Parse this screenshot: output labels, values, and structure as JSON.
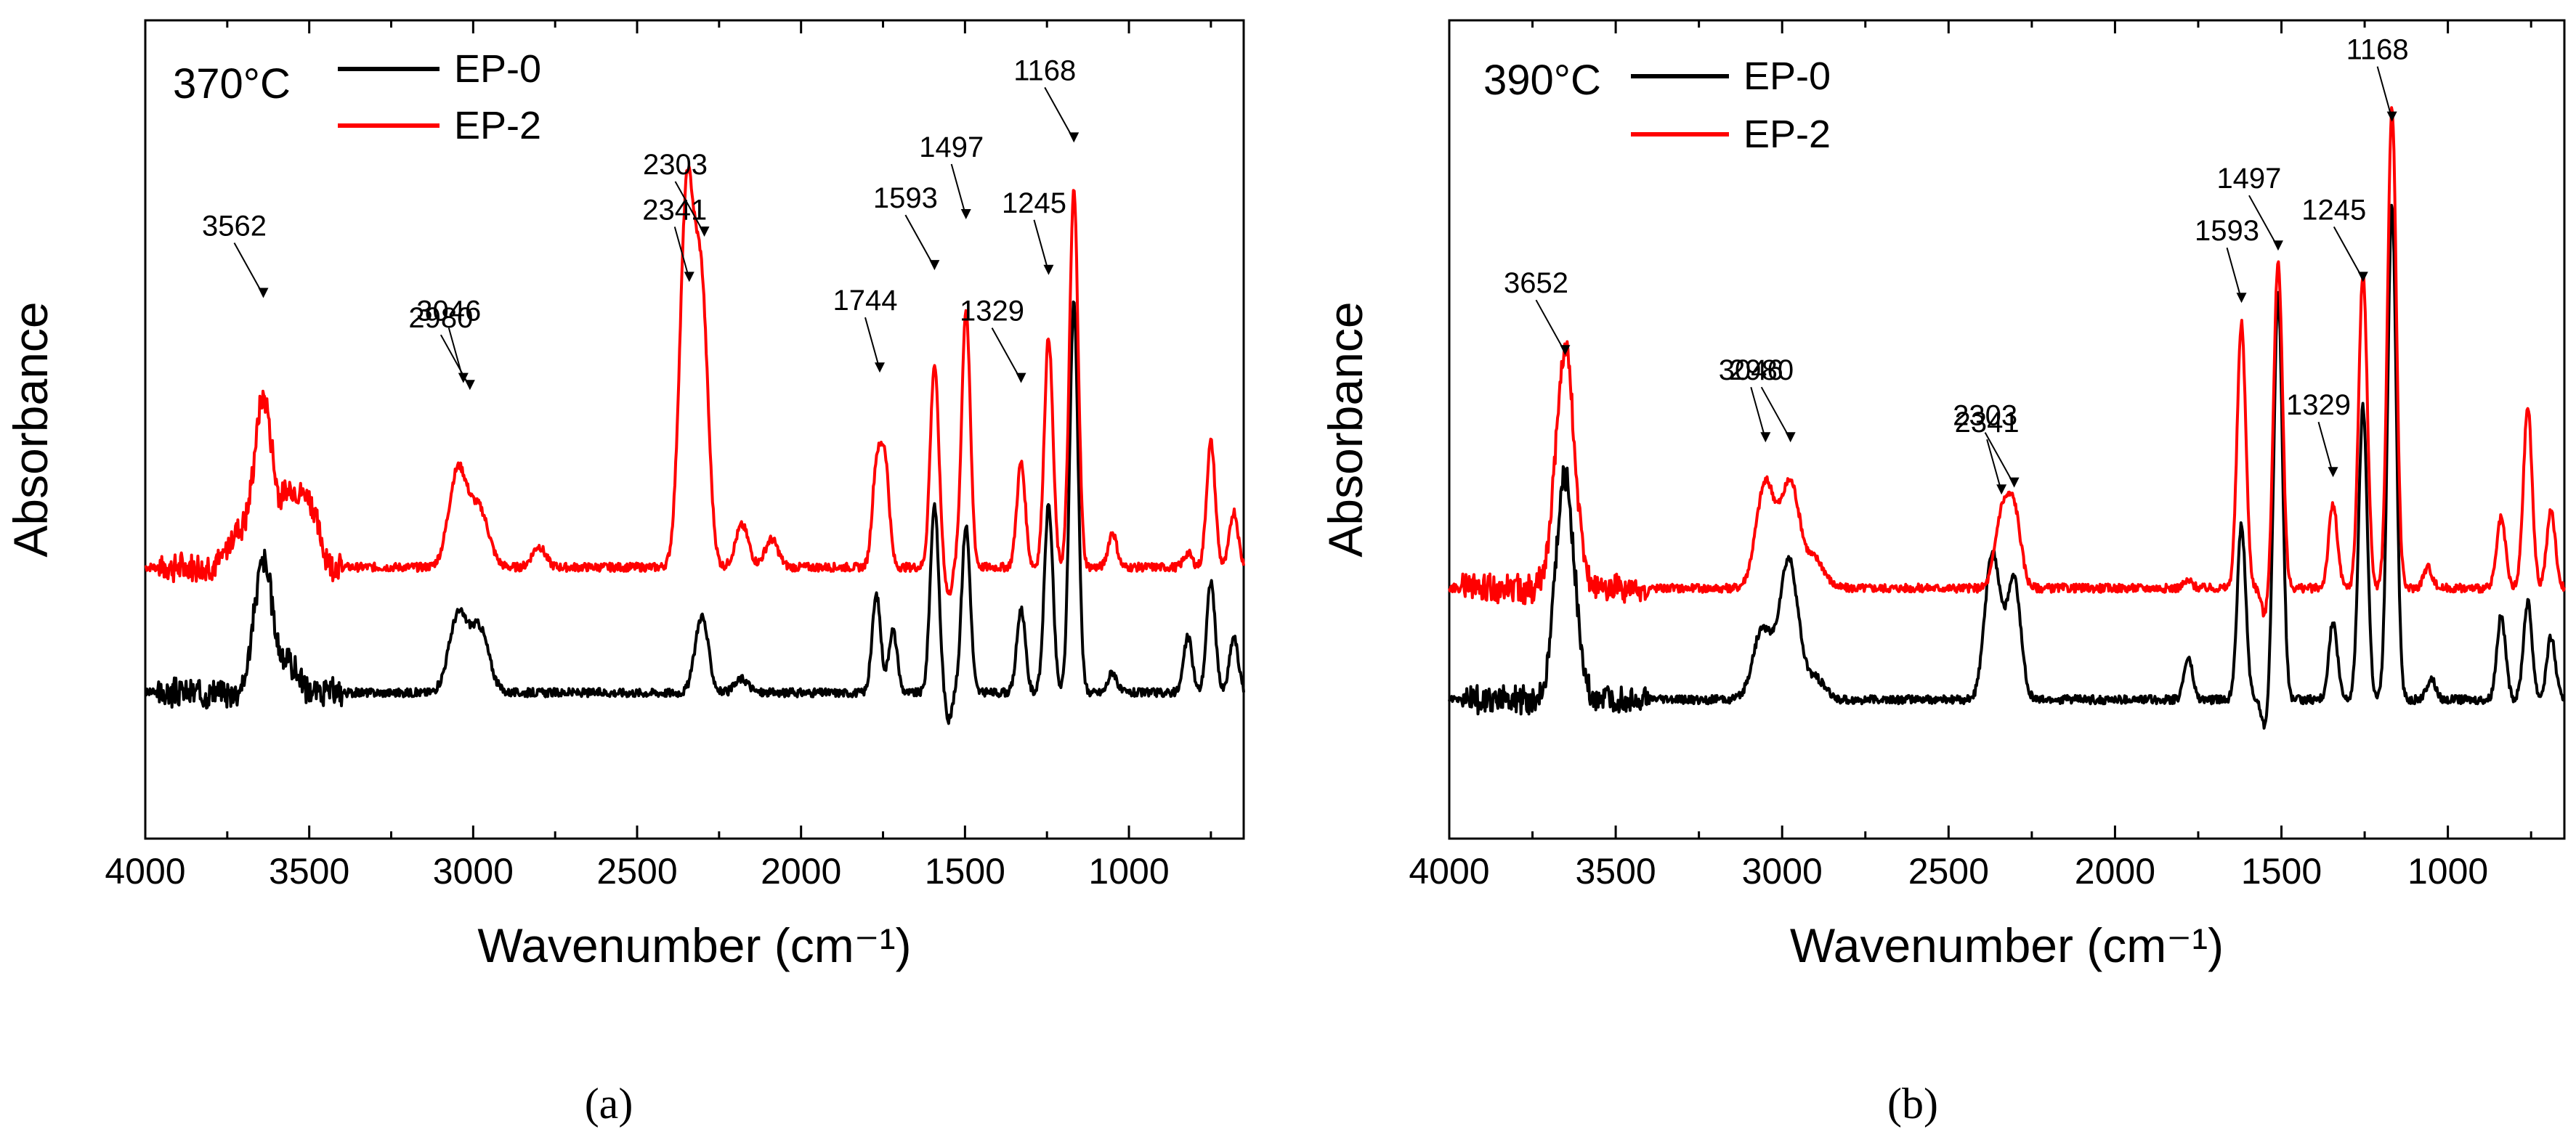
{
  "figure": {
    "caption_a": "(a)",
    "caption_b": "(b)"
  },
  "chart_data": [
    {
      "type": "line",
      "panel_label": "370°C",
      "xlabel": "Wavenumber (cm⁻¹)",
      "ylabel": "Absorbance",
      "xlim": [
        4000,
        650
      ],
      "xticks": [
        4000,
        3500,
        3000,
        2500,
        2000,
        1500,
        1000
      ],
      "xtick_labels": [
        "4000",
        "3500",
        "3000",
        "2500",
        "2000",
        "1500",
        "1000"
      ],
      "ylim": [
        0,
        1
      ],
      "legend": [
        "EP-0",
        "EP-2"
      ],
      "colors": {
        "EP-0": "#000000",
        "EP-2": "#ff0000"
      },
      "annotations": [
        {
          "text": "3562",
          "x": 3640,
          "y": 0.662
        },
        {
          "text": "3046",
          "x": 3030,
          "y": 0.54
        },
        {
          "text": "2980",
          "x": 3010,
          "y": 0.53
        },
        {
          "text": "2341",
          "x": 2341,
          "y": 0.685
        },
        {
          "text": "2303",
          "x": 2295,
          "y": 0.75
        },
        {
          "text": "1744",
          "x": 1760,
          "y": 0.555
        },
        {
          "text": "1593",
          "x": 1593,
          "y": 0.702
        },
        {
          "text": "1497",
          "x": 1497,
          "y": 0.775
        },
        {
          "text": "1329",
          "x": 1329,
          "y": 0.54
        },
        {
          "text": "1245",
          "x": 1245,
          "y": 0.695
        },
        {
          "text": "1168",
          "x": 1168,
          "y": 0.885
        }
      ],
      "series": [
        {
          "name": "EP-2",
          "peaks": [
            [
              3718,
              0.05
            ],
            [
              3640,
              0.24
            ],
            [
              3560,
              0.1
            ],
            [
              3500,
              0.09
            ],
            [
              3046,
              0.14
            ],
            [
              2980,
              0.08
            ],
            [
              2800,
              0.03
            ],
            [
              2355,
              0.29
            ],
            [
              2341,
              0.28
            ],
            [
              2303,
              0.38
            ],
            [
              2180,
              0.06
            ],
            [
              2090,
              0.04
            ],
            [
              1770,
              0.14
            ],
            [
              1744,
              0.15
            ],
            [
              1593,
              0.29
            ],
            [
              1497,
              0.37
            ],
            [
              1329,
              0.15
            ],
            [
              1245,
              0.33
            ],
            [
              1168,
              0.54
            ],
            [
              1050,
              0.05
            ],
            [
              820,
              0.02
            ],
            [
              750,
              0.18
            ],
            [
              680,
              0.08
            ]
          ]
        },
        {
          "name": "EP-0",
          "peaks": [
            [
              3640,
              0.19
            ],
            [
              3560,
              0.04
            ],
            [
              3046,
              0.11
            ],
            [
              2980,
              0.09
            ],
            [
              2303,
              0.11
            ],
            [
              2180,
              0.02
            ],
            [
              1770,
              0.14
            ],
            [
              1720,
              0.09
            ],
            [
              1593,
              0.27
            ],
            [
              1497,
              0.24
            ],
            [
              1329,
              0.12
            ],
            [
              1245,
              0.27
            ],
            [
              1168,
              0.56
            ],
            [
              1050,
              0.03
            ],
            [
              820,
              0.08
            ],
            [
              750,
              0.16
            ],
            [
              680,
              0.08
            ]
          ]
        }
      ]
    },
    {
      "type": "line",
      "panel_label": "390°C",
      "xlabel": "Wavenumber (cm⁻¹)",
      "ylabel": "Absorbance",
      "xlim": [
        4000,
        650
      ],
      "xticks": [
        4000,
        3500,
        3000,
        2500,
        2000,
        1500,
        1000
      ],
      "xtick_labels": [
        "4000",
        "3500",
        "3000",
        "2500",
        "2000",
        "1500",
        "1000"
      ],
      "ylim": [
        0,
        1
      ],
      "legend": [
        "EP-0",
        "EP-2"
      ],
      "colors": {
        "EP-0": "#000000",
        "EP-2": "#ff0000"
      },
      "annotations": [
        {
          "text": "3652",
          "x": 3652,
          "y": 0.58
        },
        {
          "text": "3046",
          "x": 3050,
          "y": 0.455
        },
        {
          "text": "2980",
          "x": 2975,
          "y": 0.455
        },
        {
          "text": "2341",
          "x": 2341,
          "y": 0.38
        },
        {
          "text": "2303",
          "x": 2303,
          "y": 0.39
        },
        {
          "text": "1593",
          "x": 1620,
          "y": 0.655
        },
        {
          "text": "1497",
          "x": 1510,
          "y": 0.73
        },
        {
          "text": "1329",
          "x": 1345,
          "y": 0.405
        },
        {
          "text": "1245",
          "x": 1255,
          "y": 0.685
        },
        {
          "text": "1168",
          "x": 1168,
          "y": 0.915
        }
      ],
      "series": [
        {
          "name": "EP-2",
          "peaks": [
            [
              3652,
              0.34
            ],
            [
              3050,
              0.15
            ],
            [
              2975,
              0.15
            ],
            [
              2900,
              0.04
            ],
            [
              2341,
              0.1
            ],
            [
              2303,
              0.11
            ],
            [
              1780,
              0.01
            ],
            [
              1620,
              0.38
            ],
            [
              1510,
              0.47
            ],
            [
              1345,
              0.12
            ],
            [
              1255,
              0.45
            ],
            [
              1168,
              0.69
            ],
            [
              1060,
              0.03
            ],
            [
              840,
              0.1
            ],
            [
              760,
              0.26
            ],
            [
              690,
              0.11
            ]
          ]
        },
        {
          "name": "EP-0",
          "peaks": [
            [
              3652,
              0.32
            ],
            [
              3060,
              0.1
            ],
            [
              2980,
              0.2
            ],
            [
              2900,
              0.03
            ],
            [
              2375,
              0.16
            ],
            [
              2350,
              0.09
            ],
            [
              2303,
              0.17
            ],
            [
              1780,
              0.06
            ],
            [
              1620,
              0.25
            ],
            [
              1510,
              0.58
            ],
            [
              1345,
              0.11
            ],
            [
              1255,
              0.42
            ],
            [
              1168,
              0.71
            ],
            [
              1050,
              0.03
            ],
            [
              840,
              0.12
            ],
            [
              760,
              0.14
            ],
            [
              690,
              0.09
            ]
          ]
        }
      ]
    }
  ]
}
